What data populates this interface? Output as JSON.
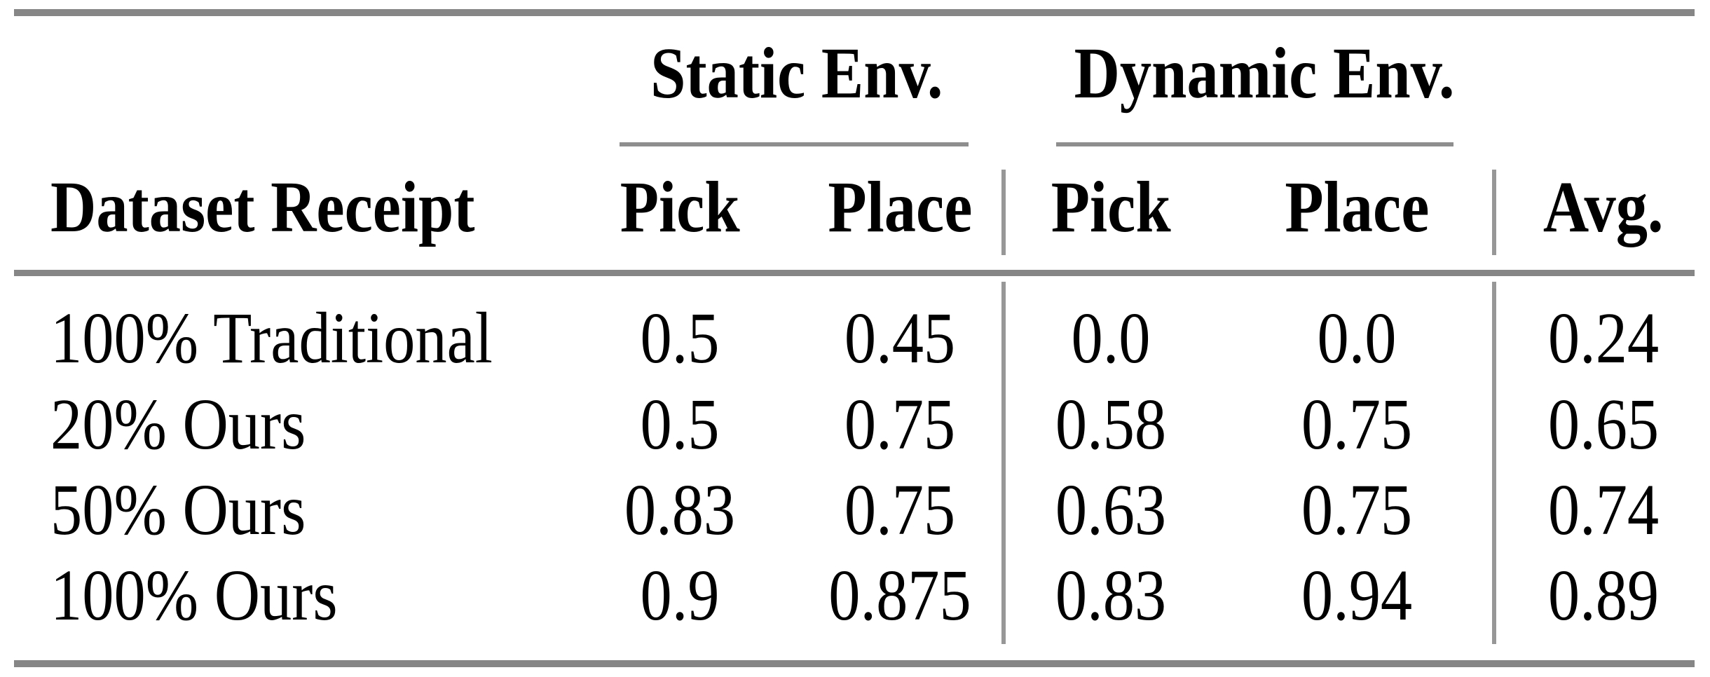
{
  "table": {
    "group_headers": {
      "static": "Static Env.",
      "dynamic": "Dynamic Env."
    },
    "column_headers": {
      "dataset": "Dataset Receipt",
      "static_pick": "Pick",
      "static_place": "Place",
      "dynamic_pick": "Pick",
      "dynamic_place": "Place",
      "avg": "Avg."
    },
    "rows": [
      {
        "label": "100% Traditional",
        "static_pick": "0.5",
        "static_place": "0.45",
        "dynamic_pick": "0.0",
        "dynamic_place": "0.0",
        "avg": "0.24"
      },
      {
        "label": "20% Ours",
        "static_pick": "0.5",
        "static_place": "0.75",
        "dynamic_pick": "0.58",
        "dynamic_place": "0.75",
        "avg": "0.65"
      },
      {
        "label": "50% Ours",
        "static_pick": "0.83",
        "static_place": "0.75",
        "dynamic_pick": "0.63",
        "dynamic_place": "0.75",
        "avg": "0.74"
      },
      {
        "label": "100% Ours",
        "static_pick": "0.9",
        "static_place": "0.875",
        "dynamic_pick": "0.83",
        "dynamic_place": "0.94",
        "avg": "0.89"
      }
    ]
  },
  "colors": {
    "rule_thick": "#868686",
    "rule_thin": "#979797",
    "text": "#000000",
    "background": "#ffffff"
  }
}
